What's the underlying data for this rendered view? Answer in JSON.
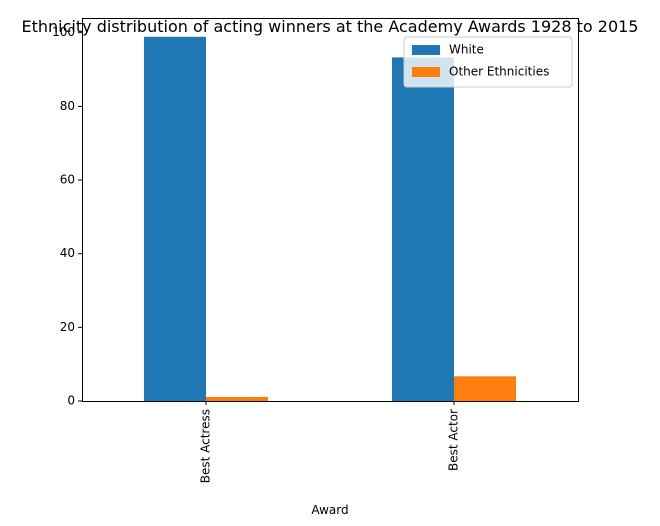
{
  "chart_data": {
    "type": "bar",
    "title": "Ethnicity distribution of acting winners at the Academy Awards 1928 to 2015",
    "xlabel": "Award",
    "ylabel": "",
    "categories": [
      "Best Actress",
      "Best Actor"
    ],
    "series": [
      {
        "name": "White",
        "values": [
          98.9,
          93.3
        ],
        "color": "#1f77b4"
      },
      {
        "name": "Other Ethnicities",
        "values": [
          1.1,
          6.7
        ],
        "color": "#ff7f0e"
      }
    ],
    "ylim": [
      0,
      104
    ],
    "yticks": [
      0,
      20,
      40,
      60,
      80,
      100
    ],
    "grid": false,
    "legend": "top-right"
  }
}
